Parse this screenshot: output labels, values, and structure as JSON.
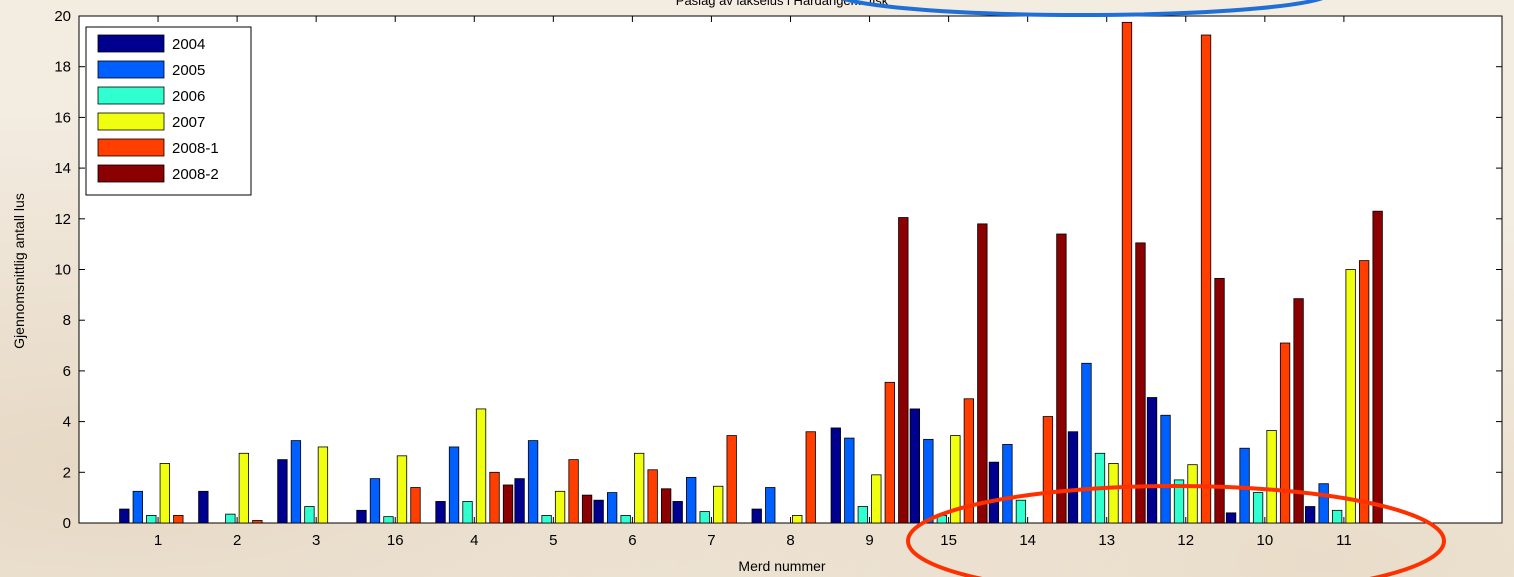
{
  "chart_data": {
    "type": "bar",
    "title": "Påslag av lakselus i Hardanger... fisk",
    "xlabel": "Merd nummer",
    "ylabel": "Gjennomsnittlig antall lus",
    "ylim": [
      0,
      20
    ],
    "yticks": [
      0,
      2,
      4,
      6,
      8,
      10,
      12,
      14,
      16,
      18,
      20
    ],
    "categories": [
      "1",
      "2",
      "3",
      "16",
      "4",
      "5",
      "6",
      "7",
      "8",
      "9",
      "15",
      "14",
      "13",
      "12",
      "10",
      "11"
    ],
    "grid": false,
    "legend_position": "top-left",
    "series": [
      {
        "name": "2004",
        "color": "#00008f",
        "values": [
          0.55,
          1.25,
          2.5,
          0.5,
          0.85,
          1.75,
          0.9,
          0.85,
          0.55,
          3.75,
          4.5,
          2.4,
          3.6,
          4.95,
          0.4,
          0.65
        ]
      },
      {
        "name": "2005",
        "color": "#0060ff",
        "values": [
          1.25,
          0,
          3.25,
          1.75,
          3.0,
          3.25,
          1.2,
          1.8,
          1.4,
          3.35,
          3.3,
          3.1,
          6.3,
          4.25,
          2.95,
          1.55
        ]
      },
      {
        "name": "2006",
        "color": "#30ffd0",
        "values": [
          0.3,
          0.35,
          0.65,
          0.25,
          0.85,
          0.3,
          0.3,
          0.45,
          0,
          0.65,
          0.3,
          0.9,
          2.75,
          1.7,
          1.2,
          0.5
        ]
      },
      {
        "name": "2007",
        "color": "#f0ff10",
        "values": [
          2.35,
          2.75,
          3.0,
          2.65,
          4.5,
          1.25,
          2.75,
          1.45,
          0.3,
          1.9,
          3.45,
          0,
          2.35,
          2.3,
          3.65,
          10.0
        ]
      },
      {
        "name": "2008-1",
        "color": "#ff3e00",
        "values": [
          0.3,
          0.1,
          0,
          1.4,
          2.0,
          2.5,
          2.1,
          3.45,
          3.6,
          5.55,
          4.9,
          4.2,
          19.75,
          19.25,
          7.1,
          10.35
        ]
      },
      {
        "name": "2008-2",
        "color": "#8b0000",
        "values": [
          0,
          0,
          0,
          0,
          1.5,
          1.1,
          1.35,
          0,
          0,
          12.05,
          11.8,
          11.4,
          11.05,
          9.65,
          8.85,
          12.3
        ]
      }
    ],
    "annotations": [
      {
        "shape": "ellipse",
        "color": "#1f6fd6",
        "around": "title"
      },
      {
        "shape": "ellipse",
        "color": "#ff3000",
        "around": "categories 14–11 at x-axis"
      }
    ]
  }
}
